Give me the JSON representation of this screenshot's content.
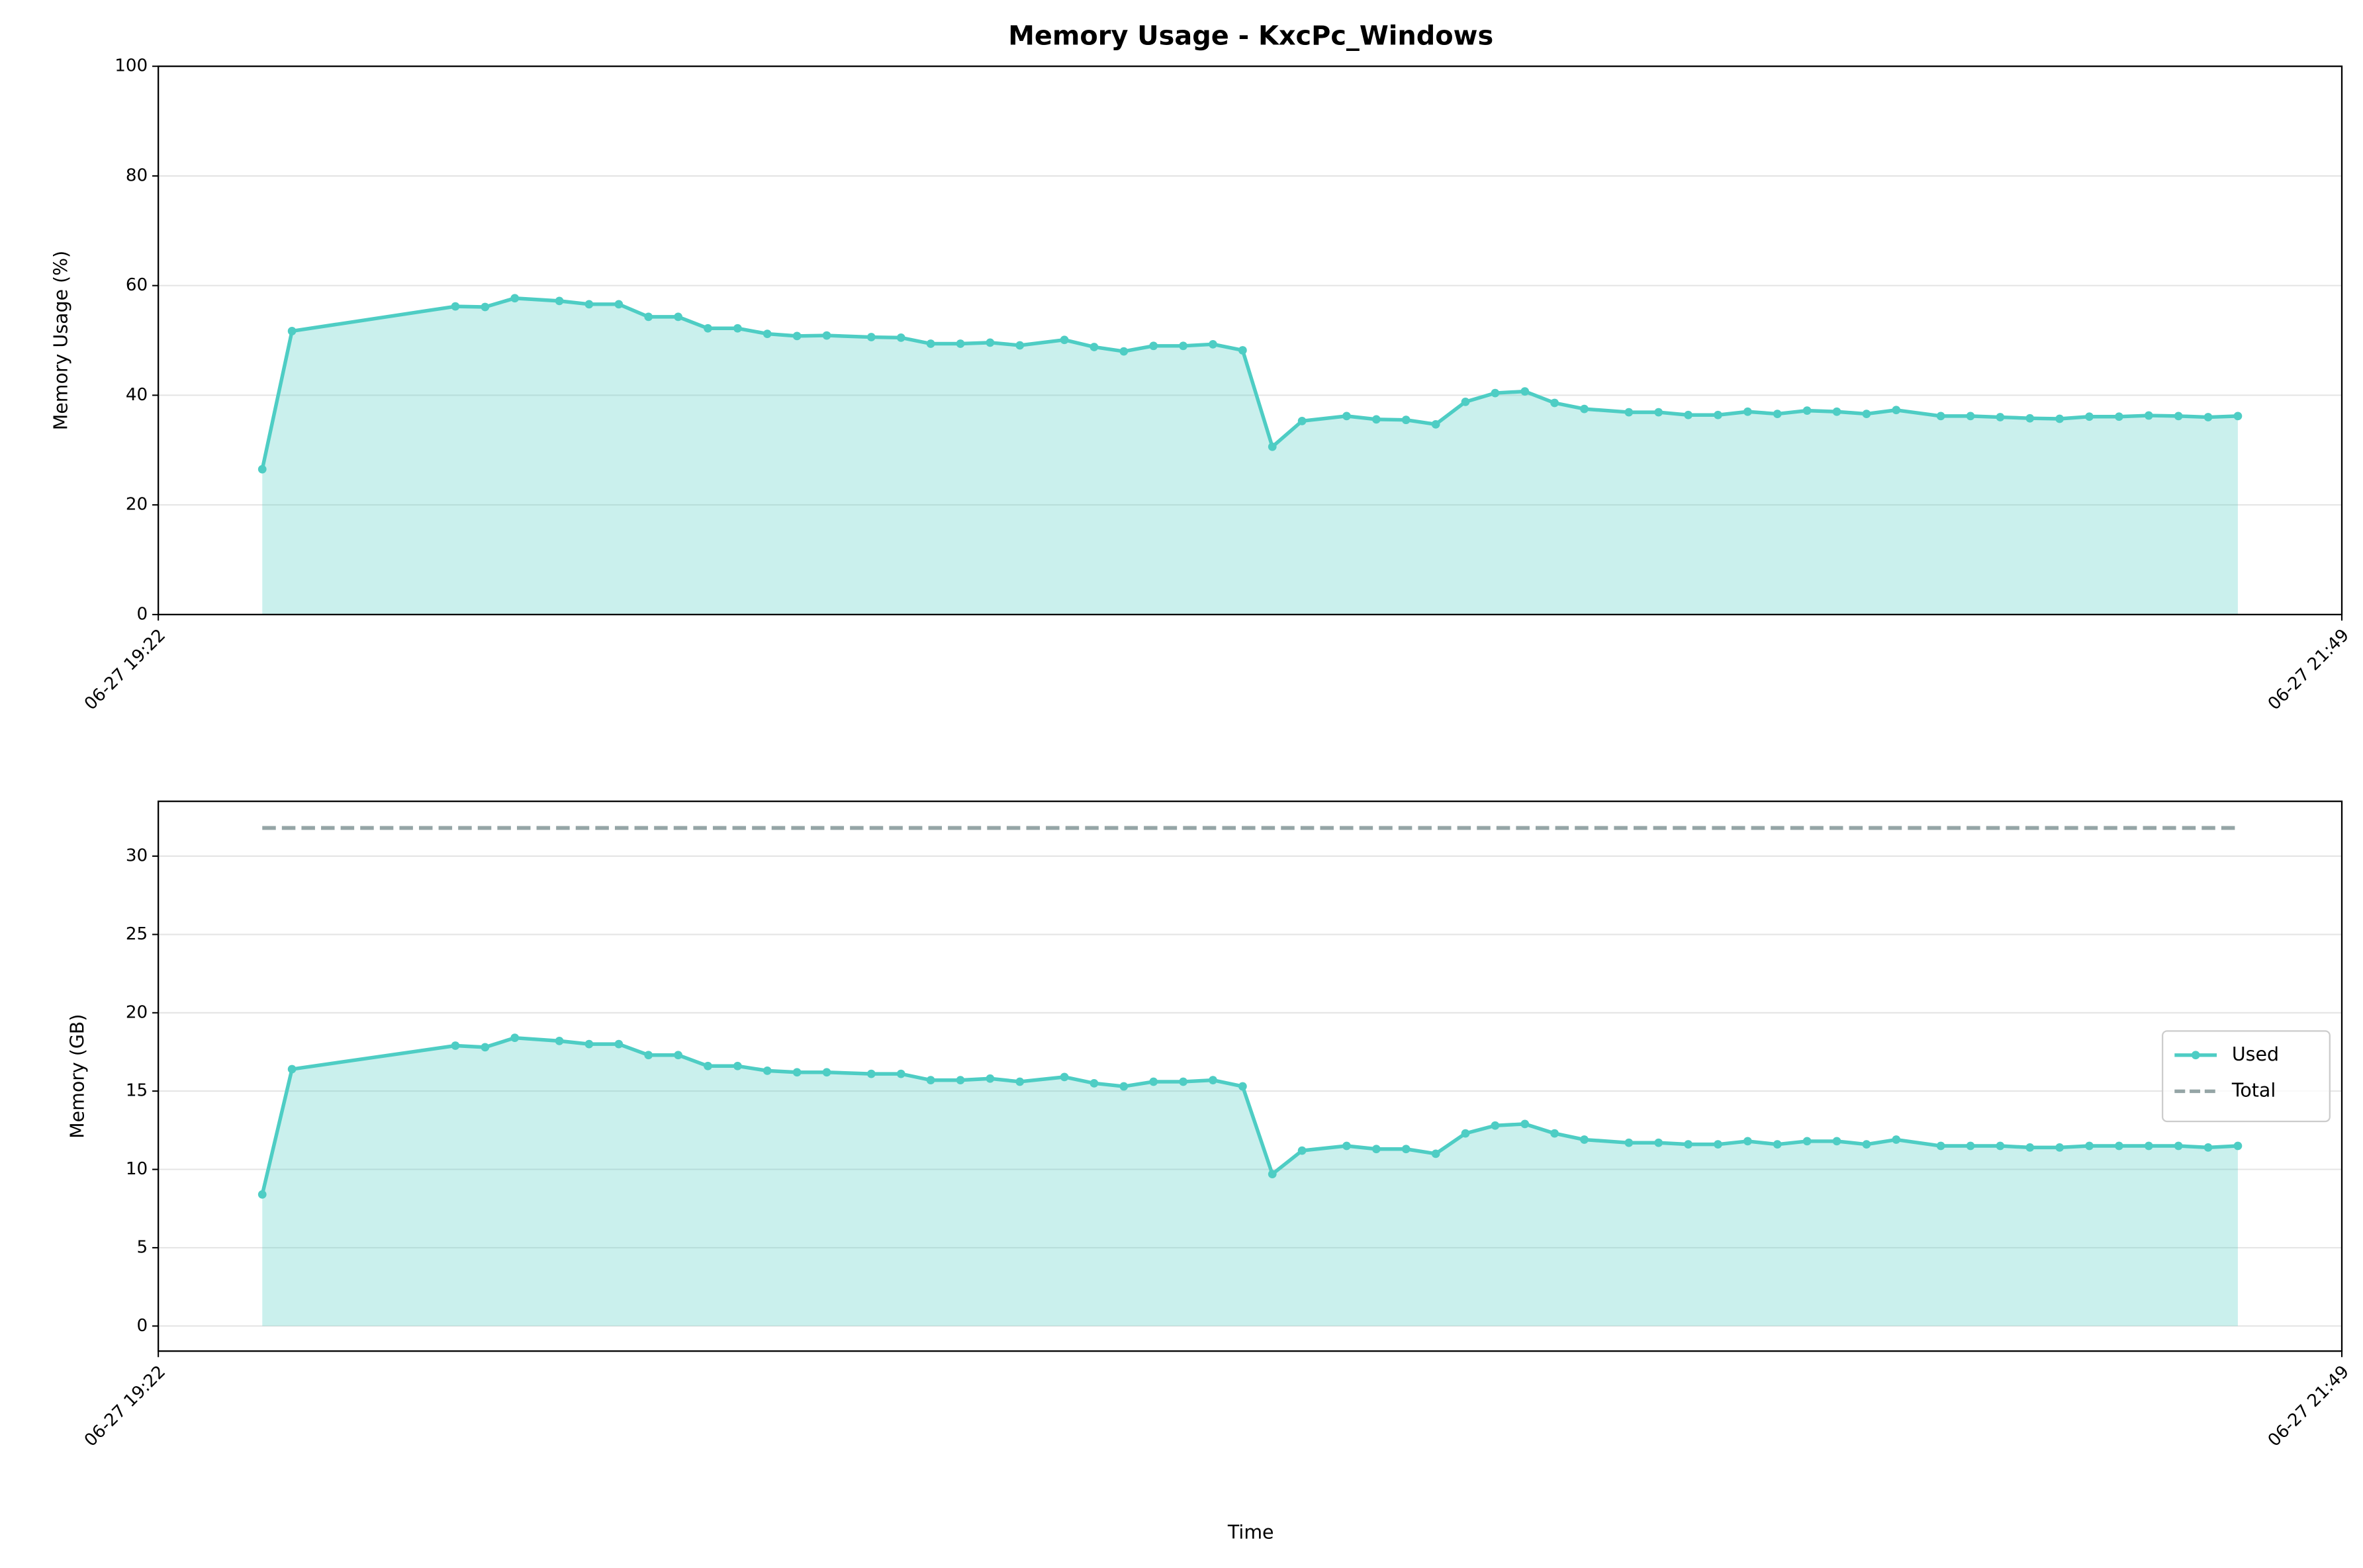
{
  "chart_data": [
    {
      "type": "line",
      "title": "Memory Usage - KxcPc_Windows",
      "ylabel": "Memory Usage (%)",
      "x": [
        "06-27 19:29",
        "06-27 19:31",
        "06-27 19:42",
        "06-27 19:44",
        "06-27 19:46",
        "06-27 19:49",
        "06-27 19:51",
        "06-27 19:53",
        "06-27 19:55",
        "06-27 19:57",
        "06-27 19:59",
        "06-27 20:01",
        "06-27 20:03",
        "06-27 20:05",
        "06-27 20:07",
        "06-27 20:10",
        "06-27 20:12",
        "06-27 20:14",
        "06-27 20:16",
        "06-27 20:18",
        "06-27 20:20",
        "06-27 20:23",
        "06-27 20:25",
        "06-27 20:27",
        "06-27 20:29",
        "06-27 20:31",
        "06-27 20:33",
        "06-27 20:35",
        "06-27 20:37",
        "06-27 20:39",
        "06-27 20:42",
        "06-27 20:44",
        "06-27 20:46",
        "06-27 20:48",
        "06-27 20:50",
        "06-27 20:52",
        "06-27 20:54",
        "06-27 20:56",
        "06-27 20:58",
        "06-27 21:01",
        "06-27 21:03",
        "06-27 21:05",
        "06-27 21:07",
        "06-27 21:09",
        "06-27 21:11",
        "06-27 21:13",
        "06-27 21:15",
        "06-27 21:17",
        "06-27 21:19",
        "06-27 21:22",
        "06-27 21:24",
        "06-27 21:26",
        "06-27 21:28",
        "06-27 21:30",
        "06-27 21:32",
        "06-27 21:34",
        "06-27 21:36",
        "06-27 21:38",
        "06-27 21:40",
        "06-27 21:42"
      ],
      "values": [
        26.5,
        51.7,
        56.2,
        56.1,
        57.7,
        57.2,
        56.6,
        56.6,
        54.3,
        54.3,
        52.2,
        52.2,
        51.2,
        50.8,
        50.9,
        50.6,
        50.5,
        49.4,
        49.4,
        49.6,
        49.1,
        50.1,
        48.8,
        48.0,
        49.0,
        49.0,
        49.3,
        48.2,
        30.6,
        35.3,
        36.2,
        35.6,
        35.5,
        34.7,
        38.8,
        40.4,
        40.7,
        38.6,
        37.5,
        36.9,
        36.9,
        36.4,
        36.4,
        37.0,
        36.6,
        37.2,
        37.0,
        36.6,
        37.3,
        36.2,
        36.2,
        36.0,
        35.8,
        35.7,
        36.1,
        36.1,
        36.3,
        36.2,
        36.0,
        36.2
      ],
      "color": "#4ecdc4",
      "fill": true,
      "marker": "o",
      "linestyle": "solid",
      "xlim": [
        "06-27 19:22",
        "06-27 21:49"
      ],
      "xticks": [
        "06-27 19:22",
        "06-27 21:49"
      ],
      "ylim": [
        0,
        100
      ],
      "yticks": [
        0,
        20,
        40,
        60,
        80,
        100
      ],
      "grid": true
    },
    {
      "type": "line",
      "ylabel": "Memory (GB)",
      "xlabel": "Time",
      "x": [
        "06-27 19:29",
        "06-27 19:31",
        "06-27 19:42",
        "06-27 19:44",
        "06-27 19:46",
        "06-27 19:49",
        "06-27 19:51",
        "06-27 19:53",
        "06-27 19:55",
        "06-27 19:57",
        "06-27 19:59",
        "06-27 20:01",
        "06-27 20:03",
        "06-27 20:05",
        "06-27 20:07",
        "06-27 20:10",
        "06-27 20:12",
        "06-27 20:14",
        "06-27 20:16",
        "06-27 20:18",
        "06-27 20:20",
        "06-27 20:23",
        "06-27 20:25",
        "06-27 20:27",
        "06-27 20:29",
        "06-27 20:31",
        "06-27 20:33",
        "06-27 20:35",
        "06-27 20:37",
        "06-27 20:39",
        "06-27 20:42",
        "06-27 20:44",
        "06-27 20:46",
        "06-27 20:48",
        "06-27 20:50",
        "06-27 20:52",
        "06-27 20:54",
        "06-27 20:56",
        "06-27 20:58",
        "06-27 21:01",
        "06-27 21:03",
        "06-27 21:05",
        "06-27 21:07",
        "06-27 21:09",
        "06-27 21:11",
        "06-27 21:13",
        "06-27 21:15",
        "06-27 21:17",
        "06-27 21:19",
        "06-27 21:22",
        "06-27 21:24",
        "06-27 21:26",
        "06-27 21:28",
        "06-27 21:30",
        "06-27 21:32",
        "06-27 21:34",
        "06-27 21:36",
        "06-27 21:38",
        "06-27 21:40",
        "06-27 21:42"
      ],
      "series": [
        {
          "name": "Used",
          "color": "#4ecdc4",
          "fill": true,
          "marker": "o",
          "linestyle": "solid",
          "values": [
            8.4,
            16.4,
            17.9,
            17.8,
            18.4,
            18.2,
            18.0,
            18.0,
            17.3,
            17.3,
            16.6,
            16.6,
            16.3,
            16.2,
            16.2,
            16.1,
            16.1,
            15.7,
            15.7,
            15.8,
            15.6,
            15.9,
            15.5,
            15.3,
            15.6,
            15.6,
            15.7,
            15.3,
            9.7,
            11.2,
            11.5,
            11.3,
            11.3,
            11.0,
            12.3,
            12.8,
            12.9,
            12.3,
            11.9,
            11.7,
            11.7,
            11.6,
            11.6,
            11.8,
            11.6,
            11.8,
            11.8,
            11.6,
            11.9,
            11.5,
            11.5,
            11.5,
            11.4,
            11.4,
            11.5,
            11.5,
            11.5,
            11.5,
            11.4,
            11.5
          ]
        },
        {
          "name": "Total",
          "color": "#95a5a6",
          "fill": false,
          "marker": "none",
          "linestyle": "dashed",
          "values": [
            31.8,
            31.8,
            31.8,
            31.8,
            31.8,
            31.8,
            31.8,
            31.8,
            31.8,
            31.8,
            31.8,
            31.8,
            31.8,
            31.8,
            31.8,
            31.8,
            31.8,
            31.8,
            31.8,
            31.8,
            31.8,
            31.8,
            31.8,
            31.8,
            31.8,
            31.8,
            31.8,
            31.8,
            31.8,
            31.8,
            31.8,
            31.8,
            31.8,
            31.8,
            31.8,
            31.8,
            31.8,
            31.8,
            31.8,
            31.8,
            31.8,
            31.8,
            31.8,
            31.8,
            31.8,
            31.8,
            31.8,
            31.8,
            31.8,
            31.8,
            31.8,
            31.8,
            31.8,
            31.8,
            31.8,
            31.8,
            31.8,
            31.8,
            31.8,
            31.8
          ]
        }
      ],
      "legend": "center right",
      "xlim": [
        "06-27 19:22",
        "06-27 21:49"
      ],
      "xticks": [
        "06-27 19:22",
        "06-27 21:49"
      ],
      "ylim": [
        -1.6,
        33.5
      ],
      "yticks": [
        0,
        5,
        10,
        15,
        20,
        25,
        30
      ],
      "grid": true
    }
  ]
}
